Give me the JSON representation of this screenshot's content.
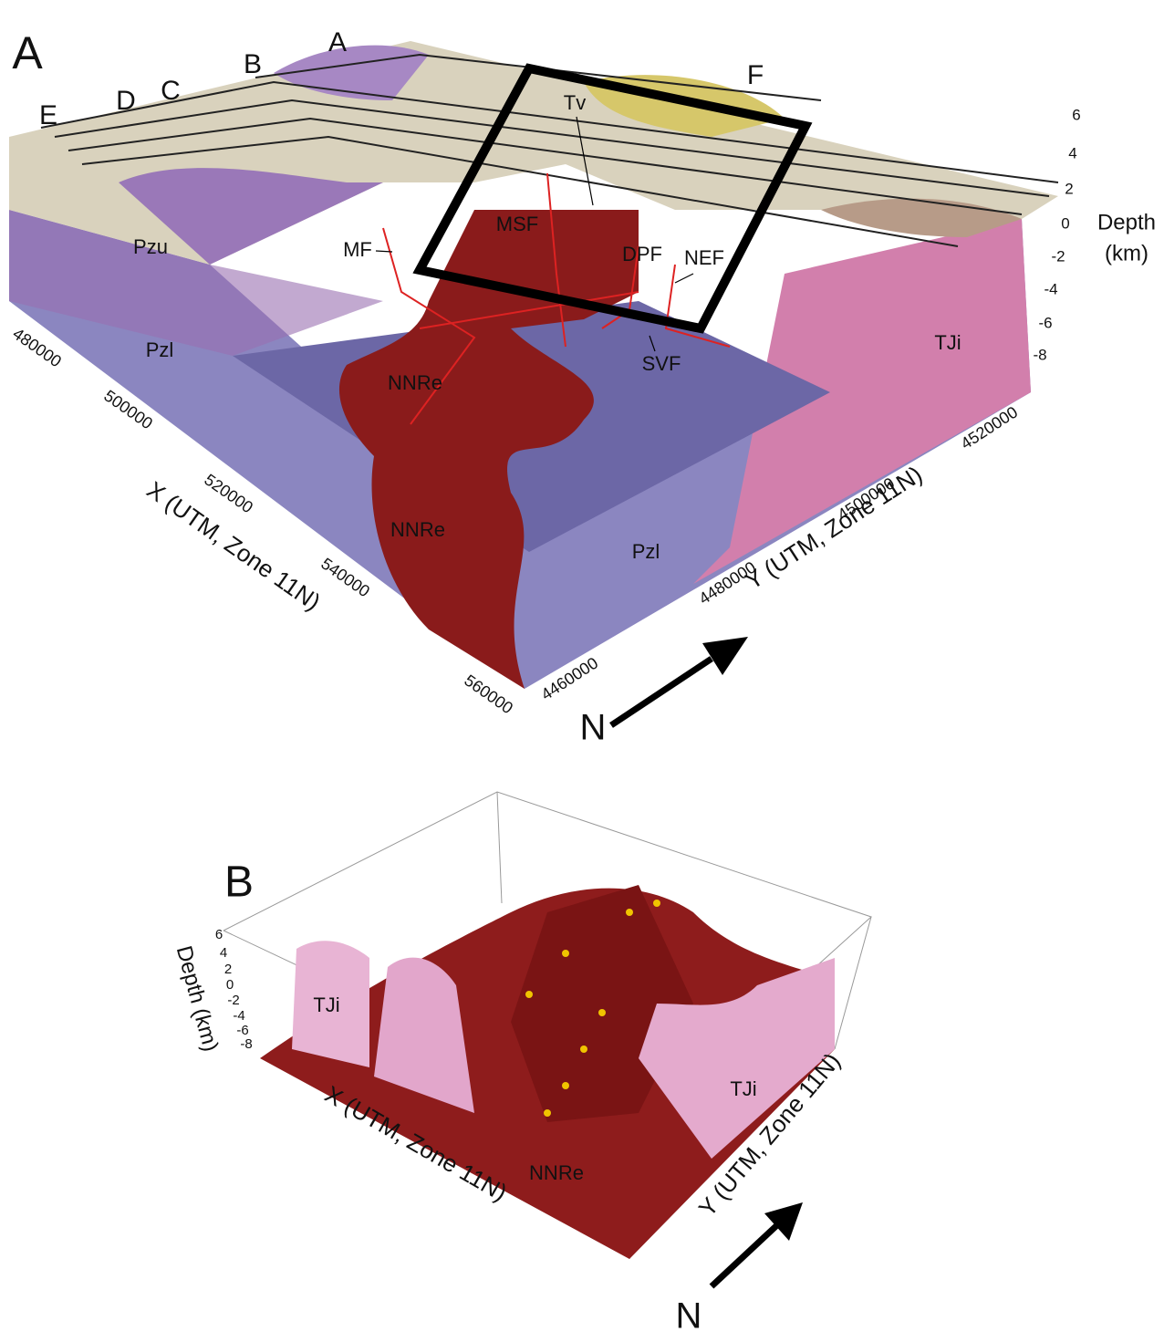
{
  "panel_a": {
    "label": "A",
    "section_labels": [
      "A",
      "B",
      "C",
      "D",
      "E",
      "F"
    ],
    "units": [
      "Tv",
      "MSF",
      "MF",
      "DPF",
      "NEF",
      "SVF",
      "Pzu",
      "Pzl",
      "NNRe",
      "NNRe",
      "Pzl",
      "TJi"
    ],
    "depth_ticks": [
      "6",
      "4",
      "2",
      "0",
      "-2",
      "-4",
      "-6",
      "-8"
    ],
    "depth_title": [
      "Depth",
      "(km)"
    ],
    "x_ticks": [
      "480000",
      "500000",
      "520000",
      "540000",
      "560000"
    ],
    "x_title": "X (UTM, Zone 11N)",
    "y_ticks": [
      "4460000",
      "4480000",
      "4500000",
      "4520000"
    ],
    "y_title": "Y (UTM, Zone 11N)",
    "north": "N"
  },
  "panel_b": {
    "label": "B",
    "units": [
      "TJi",
      "TJi",
      "NNRe"
    ],
    "depth_ticks": [
      "6",
      "4",
      "2",
      "0",
      "-2",
      "-4",
      "-6",
      "-8"
    ],
    "depth_title": "Depth (km)",
    "x_title": "X (UTM, Zone 11N)",
    "y_title": "Y (UTM, Zone 11N)",
    "north": "N"
  }
}
